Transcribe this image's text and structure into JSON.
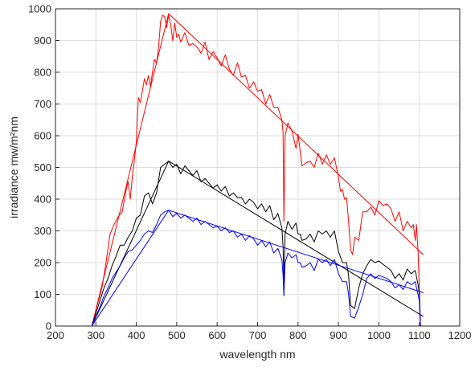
{
  "chart_data": {
    "type": "line",
    "title": "",
    "xlabel": "wavelength nm",
    "ylabel": "irradiance mw/m²nm",
    "xlim": [
      200,
      1200
    ],
    "ylim": [
      0,
      1000
    ],
    "x_ticks": [
      200,
      300,
      400,
      500,
      600,
      700,
      800,
      900,
      1000,
      1100,
      1200
    ],
    "y_ticks": [
      0,
      100,
      200,
      300,
      400,
      500,
      600,
      700,
      800,
      900,
      1000
    ],
    "grid": true,
    "legend": "none",
    "series": [
      {
        "color": "#ff0000",
        "values": [
          [
            290,
            0
          ],
          [
            300,
            50
          ],
          [
            315,
            120
          ],
          [
            325,
            200
          ],
          [
            335,
            290
          ],
          [
            345,
            320
          ],
          [
            355,
            345
          ],
          [
            365,
            360
          ],
          [
            375,
            430
          ],
          [
            380,
            455
          ],
          [
            385,
            400
          ],
          [
            390,
            470
          ],
          [
            395,
            520
          ],
          [
            400,
            580
          ],
          [
            405,
            720
          ],
          [
            410,
            705
          ],
          [
            415,
            740
          ],
          [
            420,
            780
          ],
          [
            425,
            760
          ],
          [
            430,
            790
          ],
          [
            435,
            755
          ],
          [
            440,
            800
          ],
          [
            445,
            840
          ],
          [
            450,
            830
          ],
          [
            455,
            880
          ],
          [
            460,
            960
          ],
          [
            465,
            980
          ],
          [
            470,
            975
          ],
          [
            475,
            940
          ],
          [
            480,
            980
          ],
          [
            485,
            950
          ],
          [
            490,
            900
          ],
          [
            495,
            955
          ],
          [
            500,
            910
          ],
          [
            505,
            920
          ],
          [
            510,
            895
          ],
          [
            520,
            925
          ],
          [
            530,
            885
          ],
          [
            540,
            890
          ],
          [
            550,
            880
          ],
          [
            560,
            860
          ],
          [
            570,
            895
          ],
          [
            580,
            840
          ],
          [
            590,
            865
          ],
          [
            600,
            845
          ],
          [
            610,
            820
          ],
          [
            620,
            855
          ],
          [
            630,
            810
          ],
          [
            640,
            790
          ],
          [
            650,
            830
          ],
          [
            660,
            785
          ],
          [
            670,
            790
          ],
          [
            680,
            750
          ],
          [
            690,
            770
          ],
          [
            700,
            740
          ],
          [
            710,
            745
          ],
          [
            720,
            700
          ],
          [
            730,
            730
          ],
          [
            740,
            690
          ],
          [
            750,
            690
          ],
          [
            760,
            650
          ],
          [
            763,
            610
          ],
          [
            765,
            330
          ],
          [
            768,
            600
          ],
          [
            775,
            640
          ],
          [
            785,
            615
          ],
          [
            795,
            560
          ],
          [
            800,
            605
          ],
          [
            805,
            555
          ],
          [
            810,
            505
          ],
          [
            820,
            515
          ],
          [
            830,
            520
          ],
          [
            840,
            500
          ],
          [
            850,
            545
          ],
          [
            860,
            510
          ],
          [
            870,
            540
          ],
          [
            880,
            510
          ],
          [
            890,
            530
          ],
          [
            900,
            470
          ],
          [
            905,
            425
          ],
          [
            910,
            430
          ],
          [
            915,
            400
          ],
          [
            920,
            405
          ],
          [
            925,
            330
          ],
          [
            930,
            240
          ],
          [
            935,
            225
          ],
          [
            940,
            280
          ],
          [
            950,
            270
          ],
          [
            960,
            360
          ],
          [
            970,
            360
          ],
          [
            980,
            375
          ],
          [
            990,
            350
          ],
          [
            1000,
            395
          ],
          [
            1010,
            380
          ],
          [
            1020,
            385
          ],
          [
            1030,
            370
          ],
          [
            1040,
            330
          ],
          [
            1050,
            360
          ],
          [
            1060,
            300
          ],
          [
            1070,
            330
          ],
          [
            1080,
            310
          ],
          [
            1085,
            320
          ],
          [
            1090,
            270
          ],
          [
            1093,
            320
          ],
          [
            1097,
            230
          ],
          [
            1100,
            120
          ],
          [
            1103,
            0
          ]
        ]
      },
      {
        "color": "#ff0000",
        "values": [
          [
            290,
            0
          ],
          [
            480,
            985
          ],
          [
            1110,
            225
          ]
        ]
      },
      {
        "color": "#000000",
        "values": [
          [
            290,
            0
          ],
          [
            300,
            40
          ],
          [
            310,
            80
          ],
          [
            320,
            120
          ],
          [
            330,
            150
          ],
          [
            340,
            190
          ],
          [
            350,
            220
          ],
          [
            360,
            255
          ],
          [
            370,
            255
          ],
          [
            380,
            280
          ],
          [
            390,
            300
          ],
          [
            400,
            340
          ],
          [
            410,
            350
          ],
          [
            420,
            410
          ],
          [
            430,
            420
          ],
          [
            440,
            385
          ],
          [
            450,
            420
          ],
          [
            460,
            500
          ],
          [
            470,
            510
          ],
          [
            480,
            520
          ],
          [
            490,
            500
          ],
          [
            500,
            510
          ],
          [
            510,
            480
          ],
          [
            520,
            505
          ],
          [
            530,
            490
          ],
          [
            540,
            475
          ],
          [
            550,
            490
          ],
          [
            560,
            455
          ],
          [
            570,
            465
          ],
          [
            580,
            450
          ],
          [
            590,
            435
          ],
          [
            600,
            445
          ],
          [
            610,
            425
          ],
          [
            620,
            440
          ],
          [
            630,
            410
          ],
          [
            640,
            420
          ],
          [
            650,
            405
          ],
          [
            660,
            405
          ],
          [
            670,
            385
          ],
          [
            680,
            400
          ],
          [
            690,
            390
          ],
          [
            700,
            370
          ],
          [
            710,
            385
          ],
          [
            720,
            360
          ],
          [
            730,
            380
          ],
          [
            740,
            335
          ],
          [
            750,
            355
          ],
          [
            760,
            310
          ],
          [
            763,
            250
          ],
          [
            765,
            135
          ],
          [
            768,
            290
          ],
          [
            775,
            330
          ],
          [
            785,
            305
          ],
          [
            795,
            325
          ],
          [
            800,
            290
          ],
          [
            805,
            290
          ],
          [
            810,
            270
          ],
          [
            820,
            275
          ],
          [
            830,
            290
          ],
          [
            840,
            265
          ],
          [
            850,
            300
          ],
          [
            860,
            290
          ],
          [
            870,
            300
          ],
          [
            880,
            280
          ],
          [
            890,
            300
          ],
          [
            900,
            235
          ],
          [
            910,
            200
          ],
          [
            920,
            200
          ],
          [
            925,
            160
          ],
          [
            930,
            65
          ],
          [
            940,
            55
          ],
          [
            950,
            120
          ],
          [
            960,
            165
          ],
          [
            970,
            190
          ],
          [
            980,
            210
          ],
          [
            990,
            200
          ],
          [
            1000,
            205
          ],
          [
            1010,
            195
          ],
          [
            1020,
            185
          ],
          [
            1030,
            175
          ],
          [
            1040,
            150
          ],
          [
            1050,
            165
          ],
          [
            1060,
            145
          ],
          [
            1070,
            180
          ],
          [
            1080,
            165
          ],
          [
            1090,
            175
          ],
          [
            1093,
            155
          ],
          [
            1097,
            130
          ],
          [
            1100,
            100
          ],
          [
            1103,
            0
          ]
        ]
      },
      {
        "color": "#000000",
        "values": [
          [
            290,
            0
          ],
          [
            480,
            520
          ],
          [
            1110,
            30
          ]
        ]
      },
      {
        "color": "#0000ff",
        "values": [
          [
            290,
            0
          ],
          [
            300,
            30
          ],
          [
            310,
            60
          ],
          [
            320,
            95
          ],
          [
            330,
            120
          ],
          [
            340,
            150
          ],
          [
            350,
            170
          ],
          [
            360,
            190
          ],
          [
            370,
            215
          ],
          [
            380,
            235
          ],
          [
            390,
            240
          ],
          [
            400,
            255
          ],
          [
            410,
            270
          ],
          [
            420,
            290
          ],
          [
            430,
            300
          ],
          [
            440,
            295
          ],
          [
            450,
            320
          ],
          [
            460,
            350
          ],
          [
            470,
            360
          ],
          [
            480,
            365
          ],
          [
            490,
            345
          ],
          [
            500,
            355
          ],
          [
            510,
            340
          ],
          [
            520,
            350
          ],
          [
            530,
            340
          ],
          [
            540,
            330
          ],
          [
            550,
            340
          ],
          [
            560,
            320
          ],
          [
            570,
            330
          ],
          [
            580,
            320
          ],
          [
            590,
            310
          ],
          [
            600,
            315
          ],
          [
            610,
            300
          ],
          [
            620,
            310
          ],
          [
            630,
            295
          ],
          [
            640,
            300
          ],
          [
            650,
            280
          ],
          [
            660,
            290
          ],
          [
            670,
            270
          ],
          [
            680,
            285
          ],
          [
            690,
            275
          ],
          [
            700,
            255
          ],
          [
            710,
            270
          ],
          [
            720,
            250
          ],
          [
            730,
            265
          ],
          [
            740,
            230
          ],
          [
            750,
            245
          ],
          [
            760,
            210
          ],
          [
            763,
            160
          ],
          [
            765,
            95
          ],
          [
            768,
            200
          ],
          [
            775,
            230
          ],
          [
            785,
            215
          ],
          [
            795,
            225
          ],
          [
            800,
            200
          ],
          [
            805,
            200
          ],
          [
            810,
            185
          ],
          [
            820,
            190
          ],
          [
            830,
            200
          ],
          [
            840,
            175
          ],
          [
            850,
            210
          ],
          [
            860,
            200
          ],
          [
            870,
            210
          ],
          [
            880,
            190
          ],
          [
            890,
            210
          ],
          [
            900,
            165
          ],
          [
            910,
            140
          ],
          [
            920,
            140
          ],
          [
            925,
            100
          ],
          [
            930,
            30
          ],
          [
            940,
            25
          ],
          [
            950,
            60
          ],
          [
            960,
            100
          ],
          [
            970,
            150
          ],
          [
            980,
            165
          ],
          [
            990,
            150
          ],
          [
            1000,
            160
          ],
          [
            1010,
            155
          ],
          [
            1020,
            150
          ],
          [
            1030,
            140
          ],
          [
            1040,
            120
          ],
          [
            1050,
            130
          ],
          [
            1060,
            115
          ],
          [
            1070,
            140
          ],
          [
            1080,
            130
          ],
          [
            1090,
            140
          ],
          [
            1093,
            120
          ],
          [
            1097,
            100
          ],
          [
            1100,
            80
          ],
          [
            1103,
            0
          ]
        ]
      },
      {
        "color": "#0000ff",
        "values": [
          [
            290,
            0
          ],
          [
            480,
            365
          ],
          [
            1110,
            105
          ]
        ]
      }
    ]
  }
}
